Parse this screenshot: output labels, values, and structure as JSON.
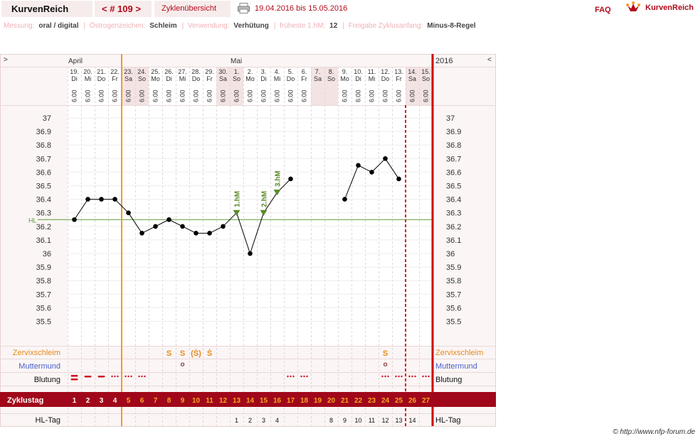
{
  "header": {
    "brand": "KurvenReich",
    "cycle_label": "< # 109 >",
    "overview_label": "Zyklenübersicht",
    "date_range": "19.04.2016 bis 15.05.2016",
    "faq_label": "FAQ",
    "logo_text": "KurvenReich"
  },
  "settings": [
    {
      "label": "Messung:",
      "value": "oral / digital"
    },
    {
      "label": "Östrogenzeichen:",
      "value": "Schleim"
    },
    {
      "label": "Verwendung:",
      "value": "Verhütung"
    },
    {
      "label": "früheste 1.hM:",
      "value": "12"
    },
    {
      "label": "Freigabe Zyklusanfang:",
      "value": "Minus-8-Regel"
    }
  ],
  "chart_data": {
    "type": "line",
    "title": "",
    "nav_prev": ">",
    "nav_next": "<",
    "year_label": "2016",
    "months": [
      {
        "label": "April",
        "start_index": 0
      },
      {
        "label": "Mai",
        "start_index": 12
      }
    ],
    "dates": [
      "19.",
      "20.",
      "21.",
      "22.",
      "23.",
      "24.",
      "25.",
      "26.",
      "27.",
      "28.",
      "29.",
      "30.",
      "1.",
      "2.",
      "3.",
      "4.",
      "5.",
      "6.",
      "7.",
      "8.",
      "9.",
      "10.",
      "11.",
      "12.",
      "13.",
      "14.",
      "15."
    ],
    "weekdays": [
      "Di",
      "Mi",
      "Do",
      "Fr",
      "Sa",
      "So",
      "Mo",
      "Di",
      "Mi",
      "Do",
      "Fr",
      "Sa",
      "So",
      "Mo",
      "Di",
      "Mi",
      "Do",
      "Fr",
      "Sa",
      "So",
      "Mo",
      "Di",
      "Mi",
      "Do",
      "Fr",
      "Sa",
      "So"
    ],
    "times": [
      "6:00",
      "6:00",
      "6:00",
      "6:00",
      "6:00",
      "6:00",
      "6:00",
      "6:00",
      "6:00",
      "6:00",
      "6:00",
      "6:00",
      "6:00",
      "6:00",
      "6:00",
      "6:00",
      "6:00",
      "6:00",
      "",
      "",
      "6:00",
      "6:00",
      "6:00",
      "6:00",
      "6:00",
      "6:00",
      "6:00"
    ],
    "weekend_indices": [
      4,
      5,
      11,
      12,
      18,
      19,
      25,
      26
    ],
    "cycle_days": [
      1,
      2,
      3,
      4,
      5,
      6,
      7,
      8,
      9,
      10,
      11,
      12,
      13,
      14,
      15,
      16,
      17,
      18,
      19,
      20,
      21,
      22,
      23,
      24,
      25,
      26,
      27
    ],
    "temperatures": [
      36.25,
      36.4,
      36.4,
      36.4,
      36.3,
      36.15,
      36.2,
      36.25,
      36.2,
      36.15,
      36.15,
      36.2,
      36.3,
      36.0,
      36.3,
      36.45,
      36.55,
      null,
      null,
      null,
      36.4,
      36.65,
      36.6,
      36.7,
      36.55,
      null,
      null
    ],
    "y_ticks": [
      "37",
      "36.9",
      "36.8",
      "36.7",
      "36.6",
      "36.5",
      "36.4",
      "36.3",
      "36.2",
      "36.1",
      "36",
      "35.9",
      "35.8",
      "35.7",
      "35.6",
      "35.5"
    ],
    "ylim": [
      35.5,
      37.0
    ],
    "hl_label": "HL",
    "hl_value": 36.25,
    "markers": [
      {
        "index": 12,
        "label": "1.hM"
      },
      {
        "index": 14,
        "label": "2.hM"
      },
      {
        "index": 15,
        "label": "3.hM"
      }
    ],
    "vertical_lines": [
      {
        "after_index": 3,
        "style": "solid",
        "color": "#f39a2b"
      },
      {
        "after_index": 24,
        "style": "dashed",
        "color": "#dd1111"
      },
      {
        "after_index": 26,
        "style": "solid",
        "color": "#cc0000"
      }
    ],
    "mucus": {
      "label": "Zervixschleim",
      "entries": [
        {
          "index": 7,
          "symbol": "S"
        },
        {
          "index": 8,
          "symbol": "S"
        },
        {
          "index": 9,
          "symbol": "(Ṡ)"
        },
        {
          "index": 10,
          "symbol": "Ṡ"
        },
        {
          "index": 23,
          "symbol": "S"
        }
      ]
    },
    "cervix": {
      "label": "Muttermund",
      "entries": [
        {
          "index": 8,
          "symbol": "o"
        },
        {
          "index": 23,
          "symbol": "o"
        }
      ]
    },
    "bleeding": {
      "label": "Blutung",
      "heavy_indices": [
        0
      ],
      "medium_indices": [
        1,
        2
      ],
      "light_indices": [
        3,
        4,
        5,
        16,
        17,
        23,
        24,
        25,
        26
      ]
    },
    "cycle_day_label": "Zyklustag",
    "hl_day_label": "HL-Tag",
    "hl_days": [
      null,
      null,
      null,
      null,
      null,
      null,
      null,
      null,
      null,
      null,
      null,
      null,
      1,
      2,
      3,
      4,
      null,
      null,
      null,
      8,
      9,
      10,
      11,
      12,
      13,
      14,
      null
    ]
  },
  "footer": {
    "copyright": "© http://www.nfp-forum.de"
  },
  "colors": {
    "accent": "#b20b1a",
    "panel": "#f7ecec",
    "orange": "#f39a2b",
    "hl_line": "#5a9a3a",
    "marker": "#5a8a2a"
  }
}
